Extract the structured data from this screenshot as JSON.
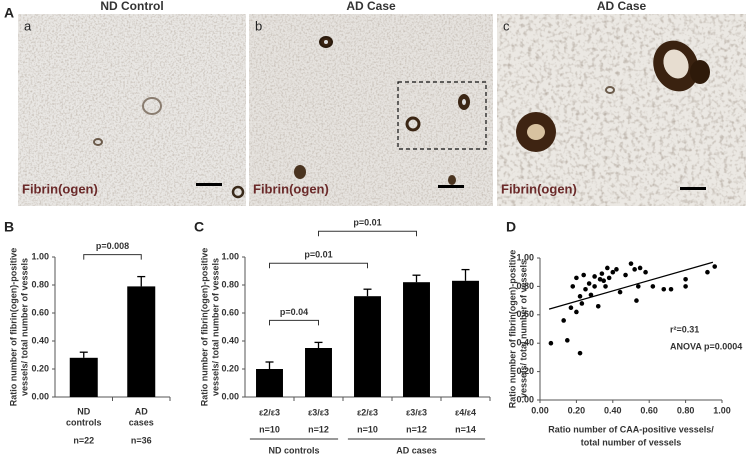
{
  "figure": {
    "label": "A",
    "micrographs": [
      {
        "title": "ND Control",
        "letter": "a",
        "stain": "Fibrin(ogen)"
      },
      {
        "title": "AD Case",
        "letter": "b",
        "stain": "Fibrin(ogen)"
      },
      {
        "title": "AD Case",
        "letter": "c",
        "stain": "Fibrin(ogen)"
      }
    ]
  },
  "chart_data": [
    {
      "type": "bar",
      "panel_label": "B",
      "color": "#000000",
      "ylabel": [
        "Ratio number of fibrin(ogen)-positive",
        "vessels/ total number of vessels"
      ],
      "categories": [
        [
          "ND",
          "controls"
        ],
        [
          "AD",
          "cases"
        ]
      ],
      "n_labels": [
        "n=22",
        "n=36"
      ],
      "values": [
        0.28,
        0.79
      ],
      "errors": [
        0.04,
        0.07
      ],
      "ylim": [
        0,
        1
      ],
      "yticks": [
        {
          "value": 0,
          "label": "0.00"
        },
        {
          "value": 0.2,
          "label": "0.20"
        },
        {
          "value": 0.4,
          "label": "0.40"
        },
        {
          "value": 0.6,
          "label": "0.60"
        },
        {
          "value": 0.8,
          "label": "0.80"
        },
        {
          "value": 1,
          "label": "1.00"
        }
      ],
      "brackets": [
        {
          "span": [
            0,
            1
          ],
          "label": "p=0.008"
        }
      ]
    },
    {
      "type": "bar",
      "panel_label": "C",
      "color": "#000000",
      "ylabel": [
        "Ratio number of fibrin(ogen)-positive",
        "vessels/ total number of vessels"
      ],
      "categories": [
        "ε2/ε3",
        "ε3/ε3",
        "ε2/ε3",
        "ε3/ε3",
        "ε4/ε4"
      ],
      "n_labels": [
        "n=10",
        "n=12",
        "n=10",
        "n=12",
        "n=14"
      ],
      "values": [
        0.2,
        0.35,
        0.72,
        0.82,
        0.83
      ],
      "errors": [
        0.05,
        0.04,
        0.05,
        0.05,
        0.08
      ],
      "ylim": [
        0,
        1
      ],
      "yticks": [
        {
          "value": 0,
          "label": "0.00"
        },
        {
          "value": 0.2,
          "label": "0.20"
        },
        {
          "value": 0.4,
          "label": "0.40"
        },
        {
          "value": 0.6,
          "label": "0.60"
        },
        {
          "value": 0.8,
          "label": "0.80"
        },
        {
          "value": 1,
          "label": "1.00"
        }
      ],
      "groups": [
        {
          "label": "ND controls",
          "span": [
            0,
            1
          ]
        },
        {
          "label": "AD cases",
          "span": [
            2,
            4
          ]
        }
      ],
      "brackets": [
        {
          "span": [
            0,
            1
          ],
          "label": "p=0.04"
        },
        {
          "span": [
            0,
            2
          ],
          "label": "p=0.01"
        },
        {
          "span": [
            1,
            3
          ],
          "label": "p=0.01"
        }
      ]
    },
    {
      "type": "scatter",
      "panel_label": "D",
      "color": "#000000",
      "ylabel": [
        "Ratio number of fibrin(ogen)-positive",
        "vessels/ total number of vessels"
      ],
      "xlabel": [
        "Ratio number of CAA-positive  vessels/",
        "total number of vessels"
      ],
      "x": [
        0.06,
        0.13,
        0.15,
        0.17,
        0.18,
        0.2,
        0.2,
        0.22,
        0.22,
        0.23,
        0.24,
        0.25,
        0.27,
        0.28,
        0.3,
        0.3,
        0.32,
        0.33,
        0.34,
        0.35,
        0.36,
        0.37,
        0.38,
        0.4,
        0.42,
        0.44,
        0.47,
        0.5,
        0.52,
        0.53,
        0.54,
        0.55,
        0.58,
        0.62,
        0.68,
        0.72,
        0.8,
        0.8,
        0.92,
        0.96
      ],
      "values": [
        0.4,
        0.56,
        0.42,
        0.65,
        0.8,
        0.86,
        0.62,
        0.33,
        0.73,
        0.68,
        0.88,
        0.78,
        0.82,
        0.74,
        0.87,
        0.8,
        0.66,
        0.85,
        0.89,
        0.84,
        0.8,
        0.93,
        0.86,
        0.9,
        0.92,
        0.76,
        0.88,
        0.96,
        0.92,
        0.7,
        0.8,
        0.93,
        0.9,
        0.8,
        0.78,
        0.78,
        0.8,
        0.85,
        0.9,
        0.94
      ],
      "fit_line": {
        "x": [
          0.05,
          0.95
        ],
        "y": [
          0.64,
          0.97
        ]
      },
      "annotations": [
        "r²=0.31",
        "ANOVA p=0.0004"
      ],
      "xlim": [
        0,
        1
      ],
      "xticks": [
        {
          "value": 0,
          "label": "0.00"
        },
        {
          "value": 0.2,
          "label": "0.20"
        },
        {
          "value": 0.4,
          "label": "0.40"
        },
        {
          "value": 0.6,
          "label": "0.60"
        },
        {
          "value": 0.8,
          "label": "0.80"
        },
        {
          "value": 1,
          "label": "1.00"
        }
      ],
      "ylim": [
        0,
        1
      ],
      "yticks": [
        {
          "value": 0,
          "label": "0.00"
        },
        {
          "value": 0.2,
          "label": "0.20"
        },
        {
          "value": 0.4,
          "label": "0.40"
        },
        {
          "value": 0.6,
          "label": "0.60"
        },
        {
          "value": 0.8,
          "label": "0.80"
        },
        {
          "value": 1,
          "label": "1.00"
        }
      ]
    }
  ]
}
